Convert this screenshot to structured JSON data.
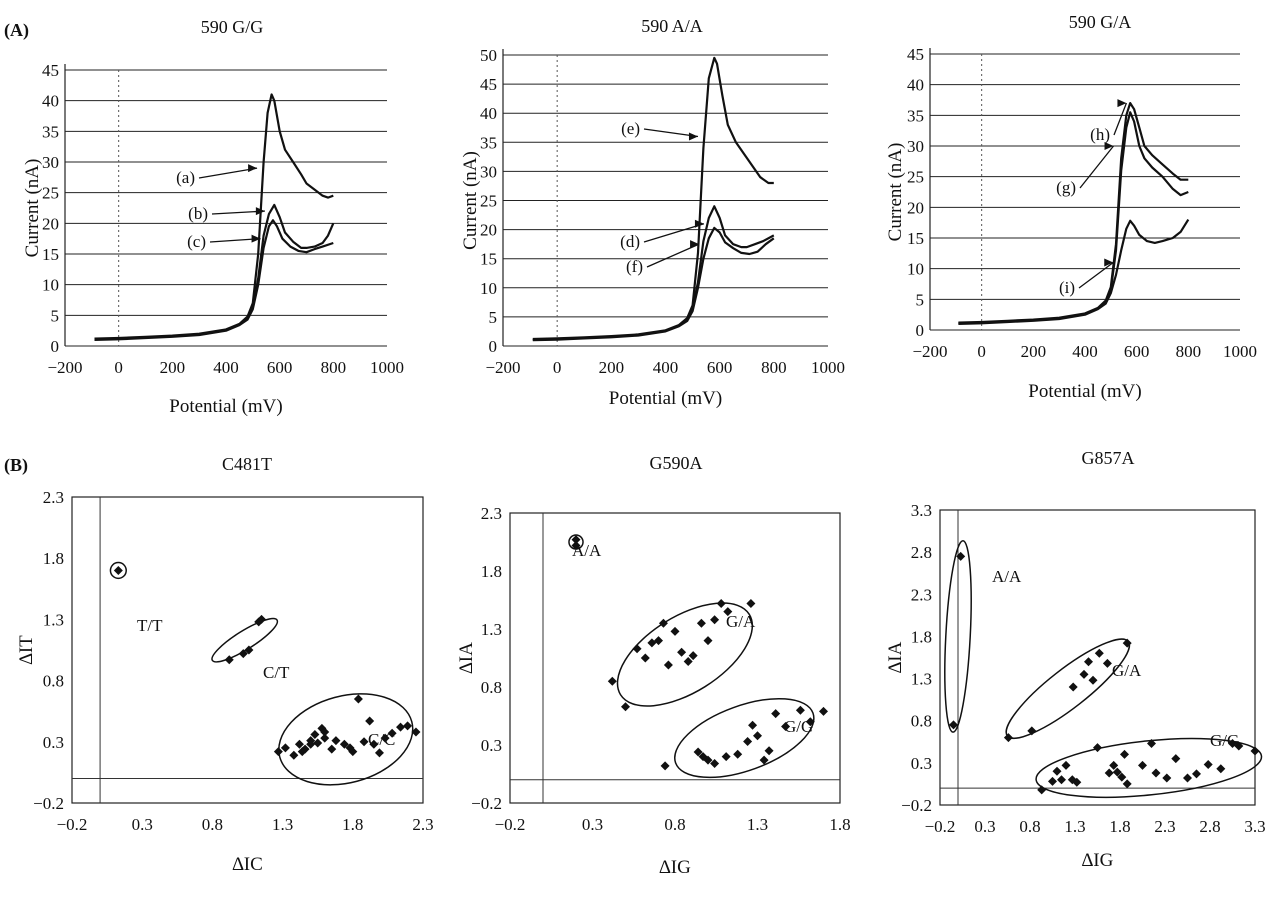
{
  "panel_labels": [
    "(A)",
    "(B)"
  ],
  "chart_data": [
    {
      "type": "line",
      "title": "590 G/G",
      "xlabel": "Potential (mV)",
      "ylabel": "Current (nA)",
      "xlim": [
        -200,
        1000
      ],
      "ylim": [
        0,
        45
      ],
      "xticks": [
        -200,
        0,
        200,
        400,
        600,
        800,
        1000
      ],
      "yticks": [
        0,
        5,
        10,
        15,
        20,
        25,
        30,
        35,
        40,
        45
      ],
      "grid": "horizontal",
      "series": [
        {
          "name": "(a)",
          "x": [
            -90,
            0,
            100,
            200,
            300,
            400,
            450,
            480,
            500,
            520,
            540,
            555,
            570,
            580,
            600,
            620,
            650,
            680,
            700,
            730,
            760,
            780,
            800
          ],
          "y": [
            1.2,
            1.3,
            1.5,
            1.7,
            2.0,
            2.7,
            3.6,
            4.8,
            7,
            15,
            30,
            38,
            41,
            40,
            35,
            32,
            30,
            28,
            26.5,
            25.5,
            24.5,
            24.2,
            24.5
          ]
        },
        {
          "name": "(b)",
          "x": [
            -90,
            0,
            100,
            200,
            300,
            400,
            450,
            480,
            500,
            520,
            540,
            560,
            580,
            600,
            620,
            650,
            680,
            700,
            730,
            760,
            780,
            800
          ],
          "y": [
            1.1,
            1.2,
            1.4,
            1.6,
            1.9,
            2.6,
            3.5,
            4.5,
            6.5,
            11,
            18,
            21.5,
            23,
            21,
            18.5,
            17,
            16,
            16,
            16.2,
            16.8,
            18,
            20
          ]
        },
        {
          "name": "(c)",
          "x": [
            -90,
            0,
            100,
            200,
            300,
            400,
            450,
            480,
            500,
            520,
            540,
            560,
            575,
            590,
            610,
            640,
            670,
            700,
            730,
            760,
            800
          ],
          "y": [
            1.0,
            1.1,
            1.3,
            1.5,
            1.8,
            2.5,
            3.4,
            4.3,
            6,
            10,
            16,
            19.5,
            20.5,
            19.5,
            17.5,
            16.2,
            15.5,
            15.3,
            15.8,
            16.2,
            16.8
          ]
        }
      ],
      "annotations": [
        "(a)",
        "(b)",
        "(c)"
      ]
    },
    {
      "type": "line",
      "title": "590 A/A",
      "xlabel": "Potential (mV)",
      "ylabel": "Current (nA)",
      "xlim": [
        -200,
        1000
      ],
      "ylim": [
        0,
        50
      ],
      "xticks": [
        -200,
        0,
        200,
        400,
        600,
        800,
        1000
      ],
      "yticks": [
        0,
        5,
        10,
        15,
        20,
        25,
        30,
        35,
        40,
        45,
        50
      ],
      "grid": "horizontal",
      "series": [
        {
          "name": "(e)",
          "x": [
            -90,
            0,
            100,
            200,
            300,
            400,
            450,
            480,
            500,
            520,
            540,
            560,
            580,
            590,
            610,
            630,
            660,
            690,
            720,
            750,
            780,
            800
          ],
          "y": [
            1.2,
            1.3,
            1.5,
            1.7,
            2.0,
            2.7,
            3.6,
            4.8,
            7,
            16,
            34,
            46,
            49.5,
            48.5,
            43,
            38,
            35,
            33,
            31,
            29,
            28,
            28
          ]
        },
        {
          "name": "(d)",
          "x": [
            -90,
            0,
            100,
            200,
            300,
            400,
            450,
            480,
            500,
            520,
            540,
            560,
            580,
            600,
            620,
            650,
            680,
            700,
            730,
            760,
            800
          ],
          "y": [
            1.1,
            1.2,
            1.4,
            1.6,
            1.9,
            2.6,
            3.5,
            4.5,
            6.5,
            11,
            18,
            22,
            24,
            22,
            19,
            17.5,
            17,
            17,
            17.5,
            18,
            19
          ]
        },
        {
          "name": "(f)",
          "x": [
            -90,
            0,
            100,
            200,
            300,
            400,
            450,
            480,
            500,
            520,
            540,
            560,
            580,
            600,
            620,
            650,
            680,
            710,
            740,
            770,
            800
          ],
          "y": [
            1.0,
            1.1,
            1.3,
            1.5,
            1.8,
            2.5,
            3.4,
            4.3,
            6,
            10,
            15,
            18.5,
            20.3,
            19.5,
            17.8,
            16.8,
            16,
            15.8,
            16.2,
            17.5,
            18.5
          ]
        }
      ],
      "annotations": [
        "(e)",
        "(d)",
        "(f)"
      ]
    },
    {
      "type": "line",
      "title": "590 G/A",
      "xlabel": "Potential (mV)",
      "ylabel": "Current (nA)",
      "xlim": [
        -200,
        1000
      ],
      "ylim": [
        0,
        45
      ],
      "xticks": [
        -200,
        0,
        200,
        400,
        600,
        800,
        1000
      ],
      "yticks": [
        0,
        5,
        10,
        15,
        20,
        25,
        30,
        35,
        40,
        45
      ],
      "grid": "horizontal",
      "series": [
        {
          "name": "(h)",
          "x": [
            -90,
            0,
            100,
            200,
            300,
            400,
            450,
            480,
            500,
            520,
            540,
            560,
            575,
            590,
            610,
            630,
            660,
            700,
            740,
            770,
            800
          ],
          "y": [
            1.2,
            1.3,
            1.5,
            1.7,
            2.0,
            2.7,
            3.6,
            4.8,
            7,
            14,
            28,
            35,
            37,
            36,
            33,
            30,
            28.5,
            27,
            25.5,
            24.5,
            24.5
          ]
        },
        {
          "name": "(g)",
          "x": [
            -90,
            0,
            100,
            200,
            300,
            400,
            450,
            480,
            500,
            520,
            540,
            560,
            575,
            590,
            610,
            630,
            660,
            700,
            740,
            770,
            800
          ],
          "y": [
            1.1,
            1.2,
            1.4,
            1.6,
            1.9,
            2.6,
            3.5,
            4.5,
            6.5,
            13,
            26,
            33,
            35.5,
            34,
            30,
            28,
            26.5,
            25,
            23,
            22,
            22.5
          ]
        },
        {
          "name": "(i)",
          "x": [
            -90,
            0,
            100,
            200,
            300,
            400,
            450,
            480,
            500,
            520,
            540,
            560,
            575,
            590,
            610,
            640,
            670,
            700,
            740,
            770,
            800
          ],
          "y": [
            1.0,
            1.1,
            1.3,
            1.5,
            1.8,
            2.5,
            3.4,
            4.3,
            6,
            9,
            13,
            16.5,
            17.8,
            17,
            15.5,
            14.5,
            14.2,
            14.5,
            15,
            16,
            18
          ]
        }
      ],
      "annotations": [
        "(h)",
        "(g)",
        "(i)"
      ]
    },
    {
      "type": "scatter",
      "title": "C481T",
      "xlabel": "∆IC",
      "ylabel": "∆IT",
      "xlim": [
        -0.2,
        2.3
      ],
      "ylim": [
        -0.2,
        2.3
      ],
      "xticks": [
        "-0.2",
        "0.3",
        "0.8",
        "1.3",
        "1.8",
        "2.3"
      ],
      "yticks": [
        "-0.2",
        "0.3",
        "0.8",
        "1.3",
        "1.8",
        "2.3"
      ],
      "grid": "none",
      "points": [
        [
          0.13,
          1.7
        ],
        [
          0.92,
          0.97
        ],
        [
          1.02,
          1.02
        ],
        [
          1.06,
          1.05
        ],
        [
          1.13,
          1.28
        ],
        [
          1.15,
          1.3
        ],
        [
          1.27,
          0.22
        ],
        [
          1.32,
          0.25
        ],
        [
          1.38,
          0.19
        ],
        [
          1.42,
          0.28
        ],
        [
          1.46,
          0.24
        ],
        [
          1.5,
          0.31
        ],
        [
          1.53,
          0.36
        ],
        [
          1.55,
          0.29
        ],
        [
          1.58,
          0.41
        ],
        [
          1.6,
          0.33
        ],
        [
          1.65,
          0.24
        ],
        [
          1.68,
          0.31
        ],
        [
          1.74,
          0.28
        ],
        [
          1.78,
          0.25
        ],
        [
          1.8,
          0.22
        ],
        [
          1.84,
          0.65
        ],
        [
          1.88,
          0.3
        ],
        [
          1.92,
          0.47
        ],
        [
          1.95,
          0.28
        ],
        [
          1.99,
          0.21
        ],
        [
          2.03,
          0.33
        ],
        [
          2.08,
          0.37
        ],
        [
          2.14,
          0.42
        ],
        [
          2.19,
          0.43
        ],
        [
          2.25,
          0.38
        ],
        [
          1.5,
          0.28
        ],
        [
          1.44,
          0.22
        ],
        [
          1.6,
          0.38
        ]
      ],
      "groups": [
        {
          "label": "T/T",
          "cx": 0.13,
          "cy": 1.7,
          "rx": 0.06,
          "ry": 0.06,
          "angle": 0
        },
        {
          "label": "C/T",
          "cx": 1.03,
          "cy": 1.13,
          "rx": 0.29,
          "ry": 0.07,
          "angle": 32
        },
        {
          "label": "C/C",
          "cx": 1.75,
          "cy": 0.32,
          "rx": 0.52,
          "ry": 0.33,
          "angle": 15
        }
      ]
    },
    {
      "type": "scatter",
      "title": "G590A",
      "xlabel": "∆IG",
      "ylabel": "∆IA",
      "xlim": [
        -0.2,
        1.8
      ],
      "ylim": [
        -0.2,
        2.3
      ],
      "xticks": [
        "-0.2",
        "0.3",
        "0.8",
        "1.3",
        "1.8"
      ],
      "yticks": [
        "-0.2",
        "0.3",
        "0.8",
        "1.3",
        "1.8",
        "2.3"
      ],
      "grid": "none",
      "points": [
        [
          0.2,
          2.07
        ],
        [
          0.2,
          2.02
        ],
        [
          0.42,
          0.85
        ],
        [
          0.5,
          0.63
        ],
        [
          0.57,
          1.13
        ],
        [
          0.62,
          1.05
        ],
        [
          0.66,
          1.18
        ],
        [
          0.7,
          1.2
        ],
        [
          0.73,
          1.35
        ],
        [
          0.76,
          0.99
        ],
        [
          0.8,
          1.28
        ],
        [
          0.84,
          1.1
        ],
        [
          0.88,
          1.02
        ],
        [
          0.91,
          1.07
        ],
        [
          0.96,
          1.35
        ],
        [
          1.0,
          1.2
        ],
        [
          1.04,
          1.38
        ],
        [
          1.08,
          1.52
        ],
        [
          1.12,
          1.45
        ],
        [
          1.26,
          1.52
        ],
        [
          0.74,
          0.12
        ],
        [
          0.94,
          0.24
        ],
        [
          0.97,
          0.2
        ],
        [
          1.0,
          0.17
        ],
        [
          1.04,
          0.14
        ],
        [
          1.11,
          0.2
        ],
        [
          1.18,
          0.22
        ],
        [
          1.24,
          0.33
        ],
        [
          1.27,
          0.47
        ],
        [
          1.3,
          0.38
        ],
        [
          1.34,
          0.17
        ],
        [
          1.37,
          0.25
        ],
        [
          1.41,
          0.57
        ],
        [
          1.47,
          0.46
        ],
        [
          1.56,
          0.6
        ],
        [
          1.62,
          0.5
        ],
        [
          1.7,
          0.59
        ]
      ],
      "groups": [
        {
          "label": "A/A",
          "cx": 0.2,
          "cy": 2.05,
          "rx": 0.05,
          "ry": 0.05,
          "angle": 0
        },
        {
          "label": "G/A",
          "cx": 0.86,
          "cy": 1.08,
          "rx": 0.54,
          "ry": 0.27,
          "angle": 32
        },
        {
          "label": "G/G",
          "cx": 1.22,
          "cy": 0.36,
          "rx": 0.52,
          "ry": 0.23,
          "angle": 20
        }
      ]
    },
    {
      "type": "scatter",
      "title": "G857A",
      "xlabel": "∆IG",
      "ylabel": "∆IA",
      "xlim": [
        -0.2,
        3.3
      ],
      "ylim": [
        -0.2,
        3.3
      ],
      "xticks": [
        "-0.2",
        "0.3",
        "0.8",
        "1.3",
        "1.8",
        "2.3",
        "2.8",
        "3.3"
      ],
      "yticks": [
        "-0.2",
        "0.3",
        "0.8",
        "1.3",
        "1.8",
        "2.3",
        "2.8",
        "3.3"
      ],
      "grid": "none",
      "points": [
        [
          0.03,
          2.75
        ],
        [
          -0.05,
          0.75
        ],
        [
          0.56,
          0.6
        ],
        [
          0.82,
          0.68
        ],
        [
          1.28,
          1.2
        ],
        [
          1.4,
          1.35
        ],
        [
          1.45,
          1.5
        ],
        [
          1.5,
          1.28
        ],
        [
          1.57,
          1.6
        ],
        [
          1.66,
          1.48
        ],
        [
          1.88,
          1.72
        ],
        [
          0.93,
          -0.02
        ],
        [
          1.05,
          0.08
        ],
        [
          1.1,
          0.2
        ],
        [
          1.15,
          0.1
        ],
        [
          1.2,
          0.27
        ],
        [
          1.27,
          0.1
        ],
        [
          1.32,
          0.07
        ],
        [
          1.55,
          0.48
        ],
        [
          1.68,
          0.18
        ],
        [
          1.73,
          0.27
        ],
        [
          1.77,
          0.19
        ],
        [
          1.82,
          0.13
        ],
        [
          1.85,
          0.4
        ],
        [
          1.88,
          0.05
        ],
        [
          2.05,
          0.27
        ],
        [
          2.15,
          0.53
        ],
        [
          2.2,
          0.18
        ],
        [
          2.32,
          0.12
        ],
        [
          2.42,
          0.35
        ],
        [
          2.55,
          0.12
        ],
        [
          2.65,
          0.17
        ],
        [
          2.78,
          0.28
        ],
        [
          2.92,
          0.23
        ],
        [
          3.05,
          0.53
        ],
        [
          3.12,
          0.5
        ],
        [
          3.3,
          0.44
        ]
      ],
      "groups": [
        {
          "label": "A/A",
          "cx": 0.0,
          "cy": 1.8,
          "rx": 1.1,
          "ry": 0.14,
          "angle": 87
        },
        {
          "label": "G/A",
          "cx": 1.22,
          "cy": 1.18,
          "rx": 0.88,
          "ry": 0.22,
          "angle": 38
        },
        {
          "label": "G/G",
          "cx": 2.12,
          "cy": 0.24,
          "rx": 1.3,
          "ry": 0.31,
          "angle": 6
        }
      ]
    }
  ]
}
